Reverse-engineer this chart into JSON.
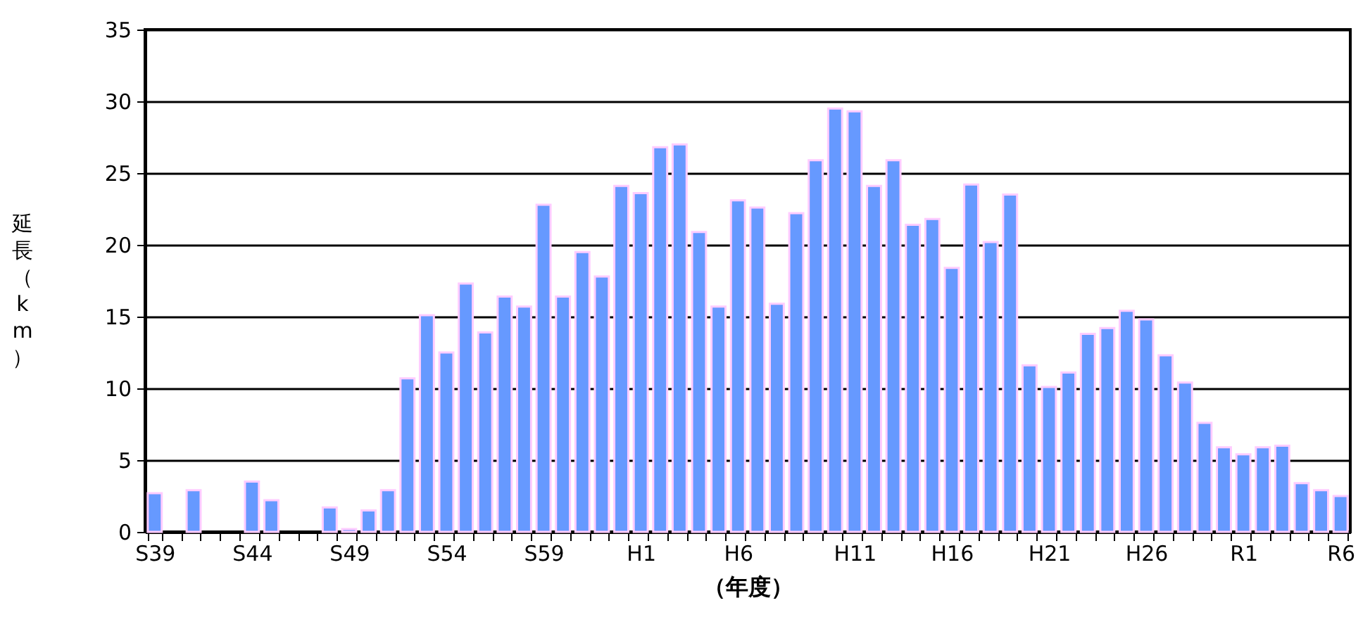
{
  "chart_data": {
    "type": "bar",
    "xlabel": "（年度）",
    "ylabel": "延長（km）",
    "categories": [
      "S39",
      null,
      null,
      null,
      null,
      "S44",
      null,
      null,
      null,
      null,
      "S49",
      null,
      null,
      null,
      null,
      "S54",
      null,
      null,
      null,
      null,
      "S59",
      null,
      null,
      null,
      null,
      "H1",
      null,
      null,
      null,
      null,
      "H6",
      null,
      null,
      null,
      null,
      null,
      "H11",
      null,
      null,
      null,
      null,
      "H16",
      null,
      null,
      null,
      null,
      "H21",
      null,
      null,
      null,
      null,
      "H26",
      null,
      null,
      null,
      null,
      "R1",
      null,
      null,
      null,
      null,
      "R6"
    ],
    "values": [
      2.7,
      0,
      2.9,
      0,
      0,
      3.5,
      2.2,
      0,
      0,
      1.7,
      0.2,
      1.5,
      2.9,
      10.7,
      15.1,
      12.5,
      17.3,
      13.9,
      16.4,
      15.7,
      22.8,
      16.4,
      19.5,
      17.8,
      24.1,
      23.6,
      26.8,
      27.0,
      20.9,
      15.7,
      23.1,
      22.6,
      15.9,
      22.2,
      25.9,
      29.5,
      29.3,
      24.1,
      25.9,
      21.4,
      21.8,
      18.4,
      24.2,
      20.2,
      23.5,
      11.6,
      10.1,
      11.1,
      13.8,
      14.2,
      15.4,
      14.8,
      12.3,
      10.4,
      7.6,
      5.9,
      5.4,
      5.9,
      6.0,
      3.4,
      2.9,
      2.5
    ],
    "color": "#6699ff",
    "ylim": [
      0,
      35
    ],
    "yticks": [
      0,
      5,
      10,
      15,
      20,
      25,
      30,
      35
    ],
    "grid": "y"
  }
}
